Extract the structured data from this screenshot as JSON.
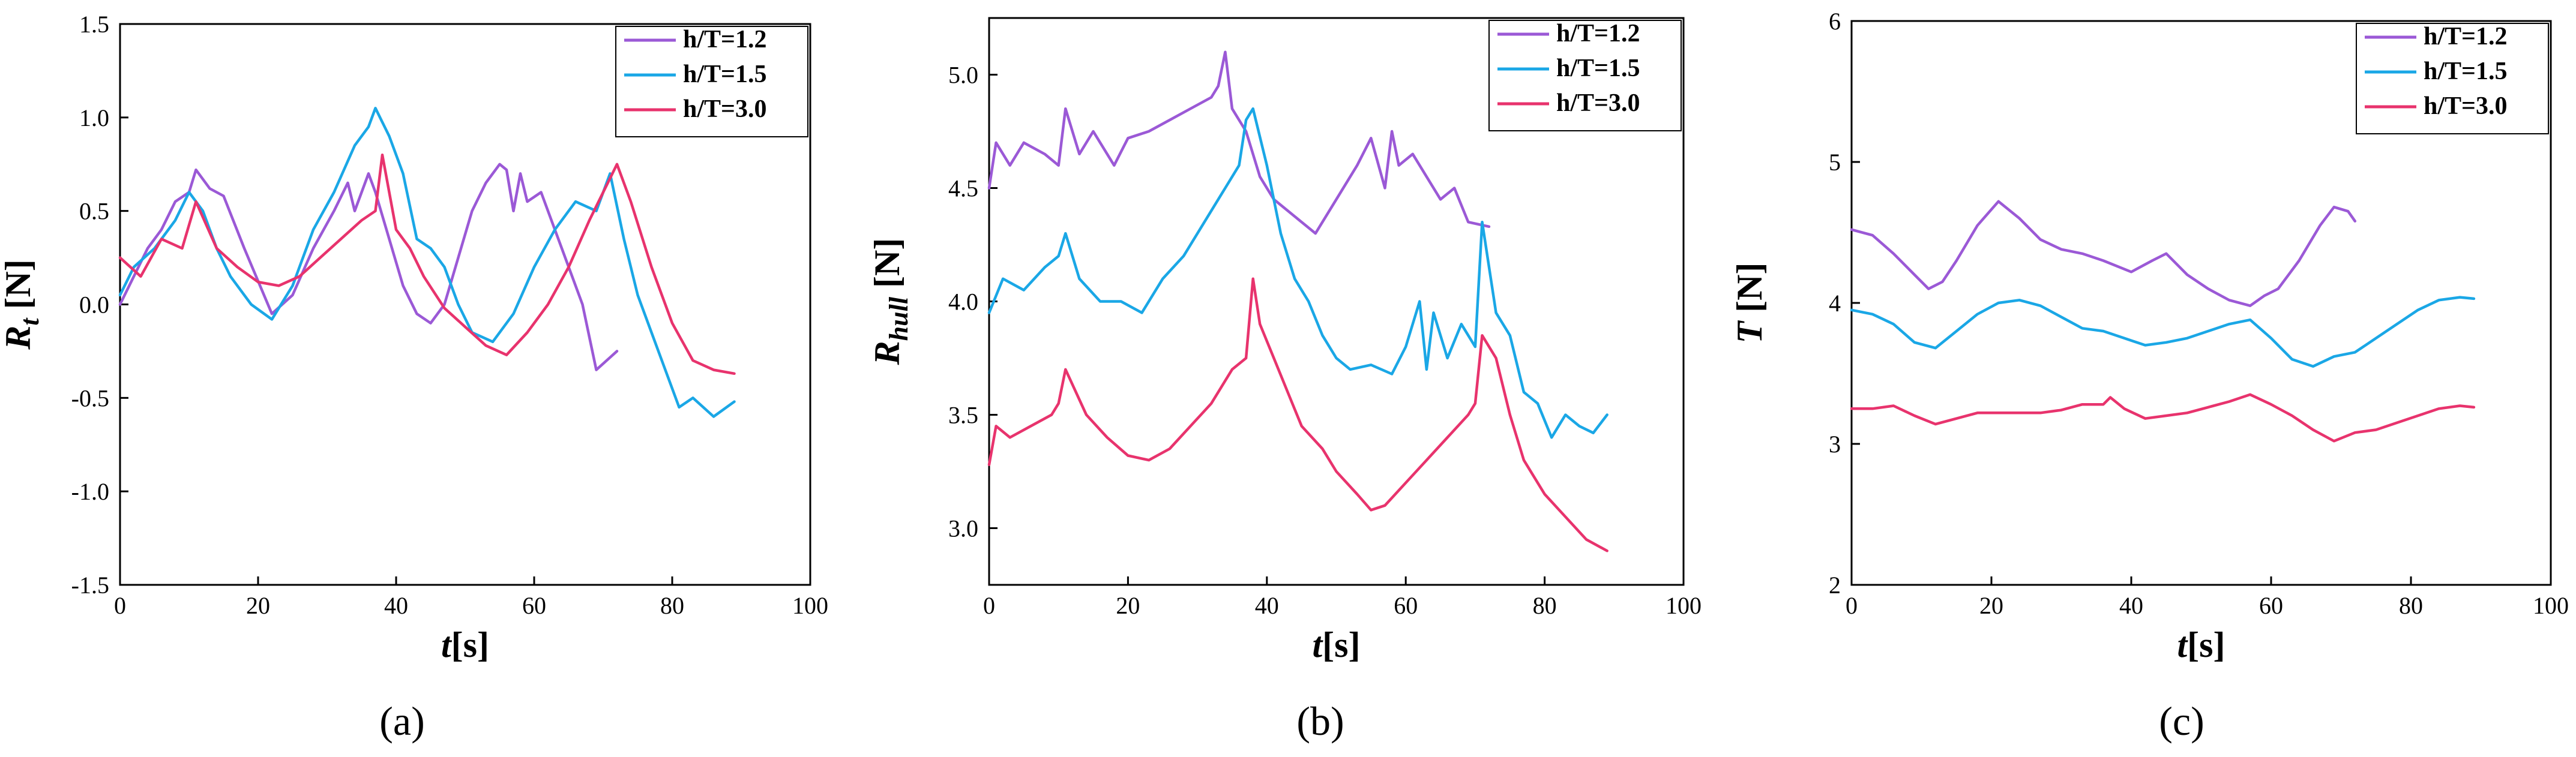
{
  "chart_data": [
    {
      "type": "line",
      "panel_caption": "(a)",
      "ylabel": "R",
      "ylabel_sub": "t",
      "ylabel_unit": " [N]",
      "xlabel": "t",
      "xlabel_unit": "[s]",
      "xlim": [
        0,
        100
      ],
      "ylim": [
        -1.5,
        1.5
      ],
      "xticks": [
        "0",
        "20",
        "40",
        "60",
        "80",
        "100"
      ],
      "yticks": [
        "-1.5",
        "-1.0",
        "-0.5",
        "0.0",
        "0.5",
        "1.0",
        "1.5"
      ],
      "xtick_values": [
        0,
        20,
        40,
        60,
        80,
        100
      ],
      "ytick_values": [
        -1.5,
        -1.0,
        -0.5,
        0.0,
        0.5,
        1.0,
        1.5
      ],
      "legend": "top-right",
      "series": [
        {
          "name": "h/T=1.2",
          "color": "#9B59D6",
          "x": [
            0,
            2,
            4,
            6,
            8,
            10,
            11,
            13,
            15,
            18,
            22,
            25,
            28,
            31,
            33,
            34,
            36,
            37,
            39,
            41,
            43,
            45,
            47,
            49,
            51,
            53,
            55,
            56,
            57,
            58,
            59,
            61,
            63,
            65,
            67,
            69,
            72
          ],
          "y": [
            0.0,
            0.15,
            0.3,
            0.4,
            0.55,
            0.6,
            0.72,
            0.62,
            0.58,
            0.3,
            -0.05,
            0.05,
            0.3,
            0.5,
            0.65,
            0.5,
            0.7,
            0.6,
            0.35,
            0.1,
            -0.05,
            -0.1,
            0.0,
            0.25,
            0.5,
            0.65,
            0.75,
            0.72,
            0.5,
            0.7,
            0.55,
            0.6,
            0.4,
            0.2,
            0.0,
            -0.35,
            -0.25
          ]
        },
        {
          "name": "h/T=1.5",
          "color": "#1AA7E6",
          "x": [
            0,
            2,
            5,
            8,
            10,
            12,
            14,
            16,
            19,
            22,
            25,
            28,
            31,
            34,
            36,
            37,
            39,
            41,
            43,
            45,
            47,
            49,
            51,
            54,
            57,
            60,
            63,
            66,
            69,
            71,
            73,
            75,
            77,
            79,
            81,
            83,
            86,
            89
          ],
          "y": [
            0.05,
            0.2,
            0.3,
            0.45,
            0.6,
            0.5,
            0.3,
            0.15,
            0.0,
            -0.08,
            0.1,
            0.4,
            0.6,
            0.85,
            0.95,
            1.05,
            0.9,
            0.7,
            0.35,
            0.3,
            0.2,
            0.0,
            -0.15,
            -0.2,
            -0.05,
            0.2,
            0.4,
            0.55,
            0.5,
            0.7,
            0.35,
            0.05,
            -0.15,
            -0.35,
            -0.55,
            -0.5,
            -0.6,
            -0.52
          ]
        },
        {
          "name": "h/T=3.0",
          "color": "#E8336D",
          "x": [
            0,
            3,
            6,
            9,
            11,
            14,
            17,
            20,
            23,
            26,
            29,
            32,
            35,
            37,
            38,
            40,
            42,
            44,
            47,
            50,
            53,
            56,
            59,
            62,
            65,
            68,
            70,
            72,
            74,
            77,
            80,
            83,
            86,
            89
          ],
          "y": [
            0.25,
            0.15,
            0.35,
            0.3,
            0.55,
            0.3,
            0.2,
            0.12,
            0.1,
            0.15,
            0.25,
            0.35,
            0.45,
            0.5,
            0.8,
            0.4,
            0.3,
            0.15,
            -0.02,
            -0.12,
            -0.22,
            -0.27,
            -0.15,
            0.0,
            0.2,
            0.45,
            0.6,
            0.75,
            0.55,
            0.2,
            -0.1,
            -0.3,
            -0.35,
            -0.37
          ]
        }
      ]
    },
    {
      "type": "line",
      "panel_caption": "(b)",
      "ylabel": "R",
      "ylabel_sub": "hull",
      "ylabel_unit": " [N]",
      "xlabel": "t",
      "xlabel_unit": "[s]",
      "xlim": [
        0,
        100
      ],
      "ylim": [
        2.75,
        5.25
      ],
      "xticks": [
        "0",
        "20",
        "40",
        "60",
        "80",
        "100"
      ],
      "yticks": [
        "3.0",
        "3.5",
        "4.0",
        "4.5",
        "5.0"
      ],
      "xtick_values": [
        0,
        20,
        40,
        60,
        80,
        100
      ],
      "ytick_values": [
        3.0,
        3.5,
        4.0,
        4.5,
        5.0
      ],
      "legend": "top-right",
      "series": [
        {
          "name": "h/T=1.2",
          "color": "#9B59D6",
          "x": [
            0,
            1,
            3,
            5,
            8,
            10,
            11,
            13,
            15,
            18,
            20,
            23,
            26,
            29,
            32,
            33,
            34,
            35,
            37,
            39,
            41,
            43,
            45,
            47,
            50,
            53,
            55,
            57,
            58,
            59,
            61,
            63,
            65,
            67,
            69,
            72
          ],
          "y": [
            4.5,
            4.7,
            4.6,
            4.7,
            4.65,
            4.6,
            4.85,
            4.65,
            4.75,
            4.6,
            4.72,
            4.75,
            4.8,
            4.85,
            4.9,
            4.95,
            5.1,
            4.85,
            4.75,
            4.55,
            4.45,
            4.4,
            4.35,
            4.3,
            4.45,
            4.6,
            4.72,
            4.5,
            4.75,
            4.6,
            4.65,
            4.55,
            4.45,
            4.5,
            4.35,
            4.33
          ]
        },
        {
          "name": "h/T=1.5",
          "color": "#1AA7E6",
          "x": [
            0,
            2,
            5,
            8,
            10,
            11,
            13,
            16,
            19,
            22,
            25,
            28,
            31,
            34,
            36,
            37,
            38,
            40,
            42,
            44,
            46,
            48,
            50,
            52,
            55,
            58,
            60,
            62,
            63,
            64,
            66,
            68,
            70,
            71,
            73,
            75,
            77,
            79,
            81,
            83,
            85,
            87,
            89
          ],
          "y": [
            3.95,
            4.1,
            4.05,
            4.15,
            4.2,
            4.3,
            4.1,
            4.0,
            4.0,
            3.95,
            4.1,
            4.2,
            4.35,
            4.5,
            4.6,
            4.8,
            4.85,
            4.6,
            4.3,
            4.1,
            4.0,
            3.85,
            3.75,
            3.7,
            3.72,
            3.68,
            3.8,
            4.0,
            3.7,
            3.95,
            3.75,
            3.9,
            3.8,
            4.35,
            3.95,
            3.85,
            3.6,
            3.55,
            3.4,
            3.5,
            3.45,
            3.42,
            3.5
          ]
        },
        {
          "name": "h/T=3.0",
          "color": "#E8336D",
          "x": [
            0,
            1,
            3,
            6,
            9,
            10,
            11,
            14,
            17,
            20,
            23,
            26,
            29,
            32,
            35,
            37,
            38,
            39,
            41,
            43,
            45,
            48,
            50,
            53,
            55,
            57,
            60,
            63,
            66,
            69,
            70,
            71,
            73,
            75,
            77,
            80,
            83,
            86,
            89
          ],
          "y": [
            3.28,
            3.45,
            3.4,
            3.45,
            3.5,
            3.55,
            3.7,
            3.5,
            3.4,
            3.32,
            3.3,
            3.35,
            3.45,
            3.55,
            3.7,
            3.75,
            4.1,
            3.9,
            3.75,
            3.6,
            3.45,
            3.35,
            3.25,
            3.15,
            3.08,
            3.1,
            3.2,
            3.3,
            3.4,
            3.5,
            3.55,
            3.85,
            3.75,
            3.5,
            3.3,
            3.15,
            3.05,
            2.95,
            2.9
          ]
        }
      ]
    },
    {
      "type": "line",
      "panel_caption": "(c)",
      "ylabel": "T",
      "ylabel_sub": "",
      "ylabel_unit": " [N]",
      "xlabel": "t",
      "xlabel_unit": "[s]",
      "xlim": [
        0,
        100
      ],
      "ylim": [
        2,
        6
      ],
      "xticks": [
        "0",
        "20",
        "40",
        "60",
        "80",
        "100"
      ],
      "yticks": [
        "2",
        "3",
        "4",
        "5",
        "6"
      ],
      "xtick_values": [
        0,
        20,
        40,
        60,
        80,
        100
      ],
      "ytick_values": [
        2,
        3,
        4,
        5,
        6
      ],
      "legend": "top-right",
      "series": [
        {
          "name": "h/T=1.2",
          "color": "#9B59D6",
          "x": [
            0,
            3,
            6,
            9,
            11,
            13,
            15,
            18,
            21,
            24,
            27,
            30,
            33,
            36,
            40,
            43,
            45,
            48,
            51,
            54,
            57,
            59,
            61,
            64,
            67,
            69,
            71,
            72
          ],
          "y": [
            4.52,
            4.48,
            4.35,
            4.2,
            4.1,
            4.15,
            4.3,
            4.55,
            4.72,
            4.6,
            4.45,
            4.38,
            4.35,
            4.3,
            4.22,
            4.3,
            4.35,
            4.2,
            4.1,
            4.02,
            3.98,
            4.05,
            4.1,
            4.3,
            4.55,
            4.68,
            4.65,
            4.58
          ]
        },
        {
          "name": "h/T=1.5",
          "color": "#1AA7E6",
          "x": [
            0,
            3,
            6,
            9,
            12,
            15,
            18,
            21,
            24,
            27,
            30,
            33,
            36,
            39,
            42,
            45,
            48,
            51,
            54,
            57,
            60,
            63,
            66,
            69,
            72,
            75,
            78,
            81,
            84,
            87,
            89
          ],
          "y": [
            3.95,
            3.92,
            3.85,
            3.72,
            3.68,
            3.8,
            3.92,
            4.0,
            4.02,
            3.98,
            3.9,
            3.82,
            3.8,
            3.75,
            3.7,
            3.72,
            3.75,
            3.8,
            3.85,
            3.88,
            3.75,
            3.6,
            3.55,
            3.62,
            3.65,
            3.75,
            3.85,
            3.95,
            4.02,
            4.04,
            4.03
          ]
        },
        {
          "name": "h/T=3.0",
          "color": "#E8336D",
          "x": [
            0,
            3,
            6,
            9,
            12,
            15,
            18,
            21,
            24,
            27,
            30,
            33,
            36,
            37,
            39,
            42,
            45,
            48,
            51,
            54,
            57,
            60,
            63,
            66,
            69,
            72,
            75,
            78,
            81,
            84,
            87,
            89
          ],
          "y": [
            3.25,
            3.25,
            3.27,
            3.2,
            3.14,
            3.18,
            3.22,
            3.22,
            3.22,
            3.22,
            3.24,
            3.28,
            3.28,
            3.33,
            3.25,
            3.18,
            3.2,
            3.22,
            3.26,
            3.3,
            3.35,
            3.28,
            3.2,
            3.1,
            3.02,
            3.08,
            3.1,
            3.15,
            3.2,
            3.25,
            3.27,
            3.26
          ]
        }
      ]
    }
  ]
}
